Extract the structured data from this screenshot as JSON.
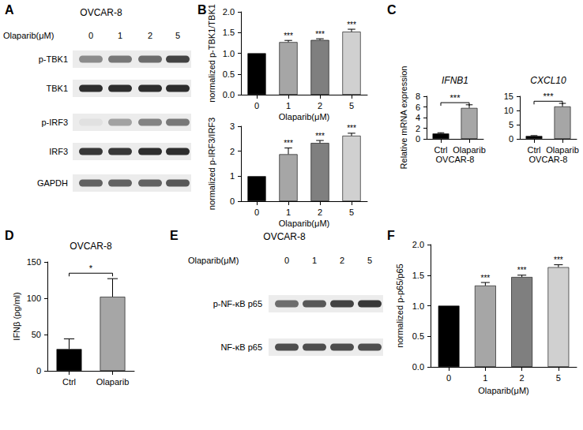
{
  "panels": [
    "A",
    "B",
    "C",
    "D",
    "E",
    "F"
  ],
  "blots": [
    {
      "title": "OVCAR-8",
      "treatment": "Olaparib(μM)",
      "lanes": [
        "0",
        "1",
        "2",
        "5"
      ],
      "rows": [
        {
          "name": "p-TBK1",
          "signal": [
            0.45,
            0.55,
            0.6,
            0.8
          ]
        },
        {
          "name": "TBK1",
          "signal": [
            0.9,
            0.9,
            0.9,
            0.9
          ]
        },
        {
          "name": "p-IRF3",
          "signal": [
            0.05,
            0.35,
            0.5,
            0.55
          ]
        },
        {
          "name": "IRF3",
          "signal": [
            0.85,
            0.85,
            0.9,
            0.9
          ]
        },
        {
          "name": "GAPDH",
          "signal": [
            0.65,
            0.65,
            0.65,
            0.7
          ]
        }
      ]
    },
    {
      "title": "OVCAR-8",
      "treatment": "Olaparib(μM)",
      "lanes": [
        "0",
        "1",
        "2",
        "5"
      ],
      "rows": [
        {
          "name": "p-NF-κB p65",
          "signal": [
            0.6,
            0.7,
            0.8,
            0.85
          ]
        },
        {
          "name": "NF-κB p65",
          "signal": [
            0.75,
            0.75,
            0.75,
            0.75
          ]
        }
      ]
    }
  ],
  "chart_data": [
    {
      "type": "bar",
      "x_label": "Olaparib(μM)",
      "y_label": "normalized p-TBK1/TBK1",
      "categories": [
        "0",
        "1",
        "2",
        "5"
      ],
      "values": [
        1,
        1.27,
        1.32,
        1.52
      ],
      "errors": [
        0,
        0.04,
        0.03,
        0.06
      ],
      "annotations": [
        null,
        "***",
        "***",
        "***"
      ],
      "colors": [
        "#000000",
        "#a6a6a6",
        "#7f7f7f",
        "#d0d0d0"
      ],
      "ylim": [
        0,
        2
      ],
      "yticks": [
        {
          "value": 0,
          "label": "0.0"
        },
        {
          "value": 0.5,
          "label": "0.5"
        },
        {
          "value": 1,
          "label": "1.0"
        },
        {
          "value": 1.5,
          "label": "1.5"
        },
        {
          "value": 2,
          "label": "2.0"
        }
      ],
      "grid": false
    },
    {
      "type": "bar",
      "x_label": "Olaparib(μM)",
      "y_label": "normalized p-IRF3/IRF3",
      "categories": [
        "0",
        "1",
        "2",
        "5"
      ],
      "values": [
        1,
        1.88,
        2.33,
        2.62
      ],
      "errors": [
        0,
        0.25,
        0.1,
        0.1
      ],
      "annotations": [
        null,
        "***",
        "***",
        "***"
      ],
      "colors": [
        "#000000",
        "#a6a6a6",
        "#7f7f7f",
        "#d0d0d0"
      ],
      "ylim": [
        0,
        3
      ],
      "yticks": [
        0,
        1,
        2,
        3
      ],
      "grid": false
    },
    {
      "type": "bar",
      "title": "IFNB1",
      "x_label": "OVCAR-8",
      "y_label": "Relative mRNA expression",
      "categories": [
        "Ctrl",
        "Olaparib"
      ],
      "values": [
        1,
        5.8
      ],
      "errors": [
        0.15,
        0.6
      ],
      "significance": {
        "pair": [
          "Ctrl",
          "Olaparib"
        ],
        "label": "***"
      },
      "colors": [
        "#000000",
        "#a6a6a6"
      ],
      "ylim": [
        0,
        8
      ],
      "yticks": [
        0,
        2,
        4,
        6,
        8
      ],
      "grid": false
    },
    {
      "type": "bar",
      "title": "CXCL10",
      "x_label": "OVCAR-8",
      "categories": [
        "Ctrl",
        "Olaparib"
      ],
      "values": [
        1,
        11.4
      ],
      "errors": [
        0.15,
        1.1
      ],
      "significance": {
        "pair": [
          "Ctrl",
          "Olaparib"
        ],
        "label": "***"
      },
      "colors": [
        "#000000",
        "#a6a6a6"
      ],
      "ylim": [
        0,
        15
      ],
      "yticks": [
        0,
        5,
        10,
        15
      ],
      "grid": false
    },
    {
      "type": "bar",
      "title": "OVCAR-8",
      "y_label": "IFNβ (pg/ml)",
      "categories": [
        "Ctrl",
        "Olaparib"
      ],
      "values": [
        30,
        102
      ],
      "errors": [
        14,
        25
      ],
      "significance": {
        "pair": [
          "Ctrl",
          "Olaparib"
        ],
        "label": "*"
      },
      "colors": [
        "#000000",
        "#a6a6a6"
      ],
      "ylim": [
        0,
        150
      ],
      "yticks": [
        0,
        50,
        100,
        150
      ],
      "grid": false
    },
    {
      "type": "bar",
      "x_label": "Olaparib(μM)",
      "y_label": "normalized p-p65/p65",
      "categories": [
        "0",
        "1",
        "2",
        "5"
      ],
      "values": [
        1,
        1.33,
        1.47,
        1.63
      ],
      "errors": [
        0,
        0.05,
        0.03,
        0.04
      ],
      "annotations": [
        null,
        "***",
        "***",
        "***"
      ],
      "colors": [
        "#000000",
        "#a6a6a6",
        "#7f7f7f",
        "#d0d0d0"
      ],
      "ylim": [
        0,
        2
      ],
      "yticks": [
        {
          "value": 0,
          "label": "0.0"
        },
        {
          "value": 0.5,
          "label": "0.5"
        },
        {
          "value": 1,
          "label": "1.0"
        },
        {
          "value": 1.5,
          "label": "1.5"
        },
        {
          "value": 2,
          "label": "2.0"
        }
      ],
      "grid": false
    }
  ]
}
